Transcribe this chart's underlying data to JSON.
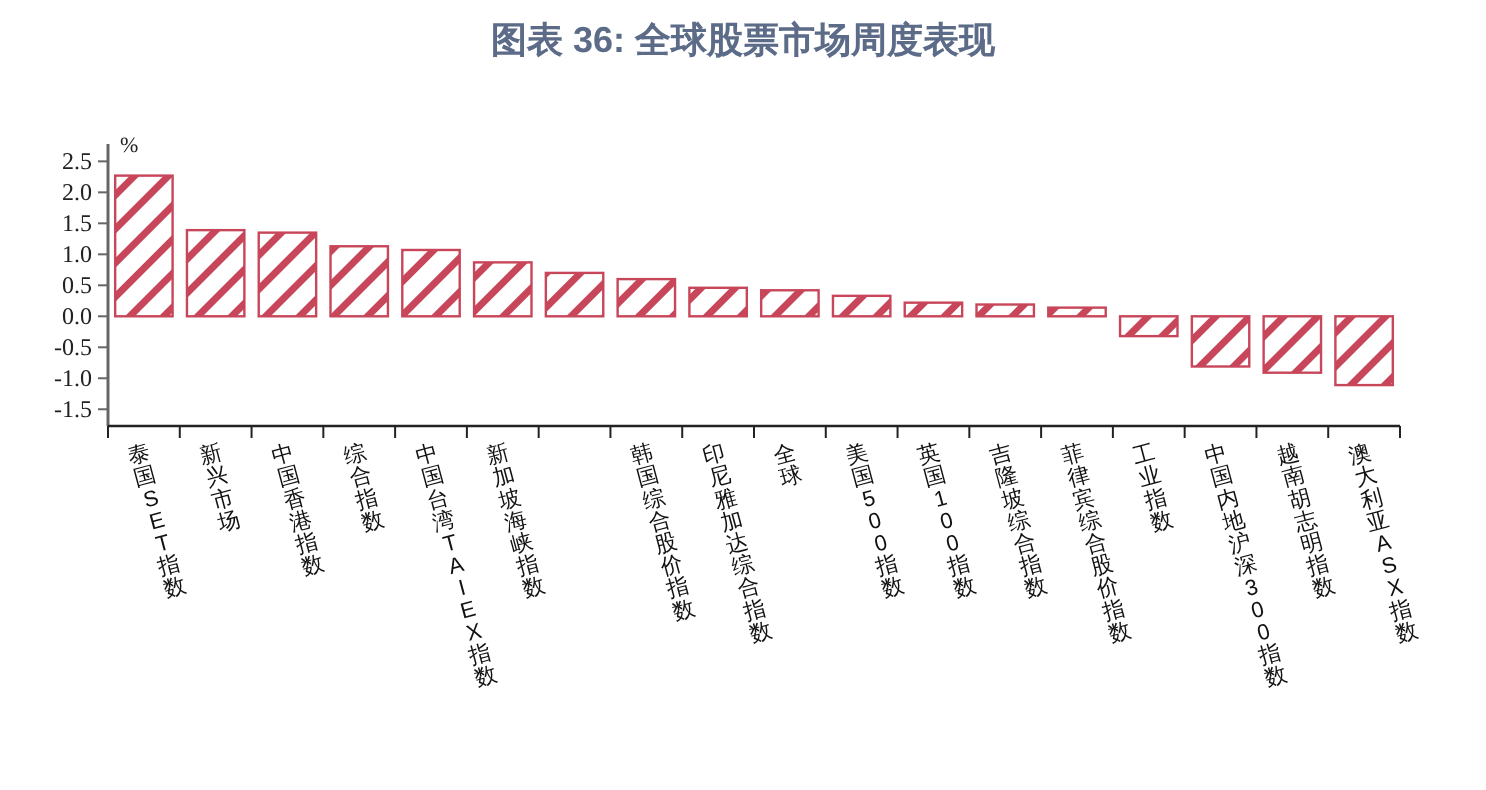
{
  "chart_data": {
    "type": "bar",
    "title": "图表 36: 全球股票市场周度表现",
    "ylabel": "%",
    "categories": [
      "泰国SET指数",
      "新兴市场",
      "中国香港指数",
      "综合指数",
      "中国台湾TAIEX指数",
      "新加坡海峡指数",
      null,
      "韩国综合股价指数",
      "印尼雅加达综合指数",
      "全球",
      "美国500指数",
      "英国100指数",
      "吉隆坡综合指数",
      "菲律宾综合股价指数",
      "工业指数",
      "中国内地沪深300指数",
      "越南胡志明指数",
      "澳大利亚ASX指数"
    ],
    "values": [
      2.27,
      1.39,
      1.35,
      1.13,
      1.07,
      0.87,
      0.7,
      0.6,
      0.46,
      0.42,
      0.33,
      0.22,
      0.19,
      0.14,
      -0.32,
      -0.81,
      -0.91,
      -1.11
    ],
    "color": "#c8465a",
    "ylim": [
      -1.77,
      2.78
    ],
    "yticks": [
      {
        "value": 2.5,
        "label": "2.5"
      },
      {
        "value": 2,
        "label": "2.0"
      },
      {
        "value": 1.5,
        "label": "1.5"
      },
      {
        "value": 1,
        "label": "1.0"
      },
      {
        "value": 0.5,
        "label": "0.5"
      },
      {
        "value": 0,
        "label": "0.0"
      },
      {
        "value": -0.5,
        "label": "-0.5"
      },
      {
        "value": -1,
        "label": "-1.0"
      },
      {
        "value": -1.5,
        "label": "-1.5"
      }
    ],
    "grid": false
  }
}
